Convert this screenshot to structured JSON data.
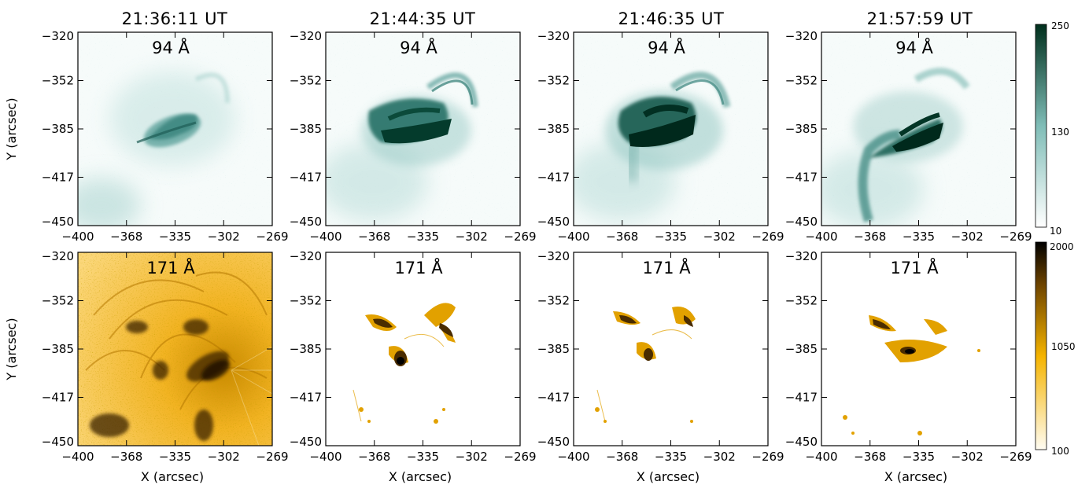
{
  "figure": {
    "time_labels": [
      "21:36:11 UT",
      "21:44:35 UT",
      "21:46:35 UT",
      "21:57:59 UT"
    ],
    "rows": [
      {
        "wavelength": "94 Å",
        "colormap": "teal",
        "colormap_colors": [
          "#ffffff",
          "#7fbdb7",
          "#003320"
        ],
        "colorbar_ticks": [
          "250",
          "130",
          "10"
        ]
      },
      {
        "wavelength": "171 Å",
        "colormap": "gold",
        "colormap_colors": [
          "#fffaf0",
          "#f7b500",
          "#000000"
        ],
        "colorbar_ticks": [
          "2000",
          "1050",
          "100"
        ]
      }
    ],
    "x_ticks": [
      "−400",
      "−368",
      "−335",
      "−302",
      "−269"
    ],
    "y_ticks": [
      "−320",
      "−352",
      "−385",
      "−417",
      "−450"
    ],
    "x_label": "X (arcsec)",
    "y_label": "Y (arcsec)"
  }
}
